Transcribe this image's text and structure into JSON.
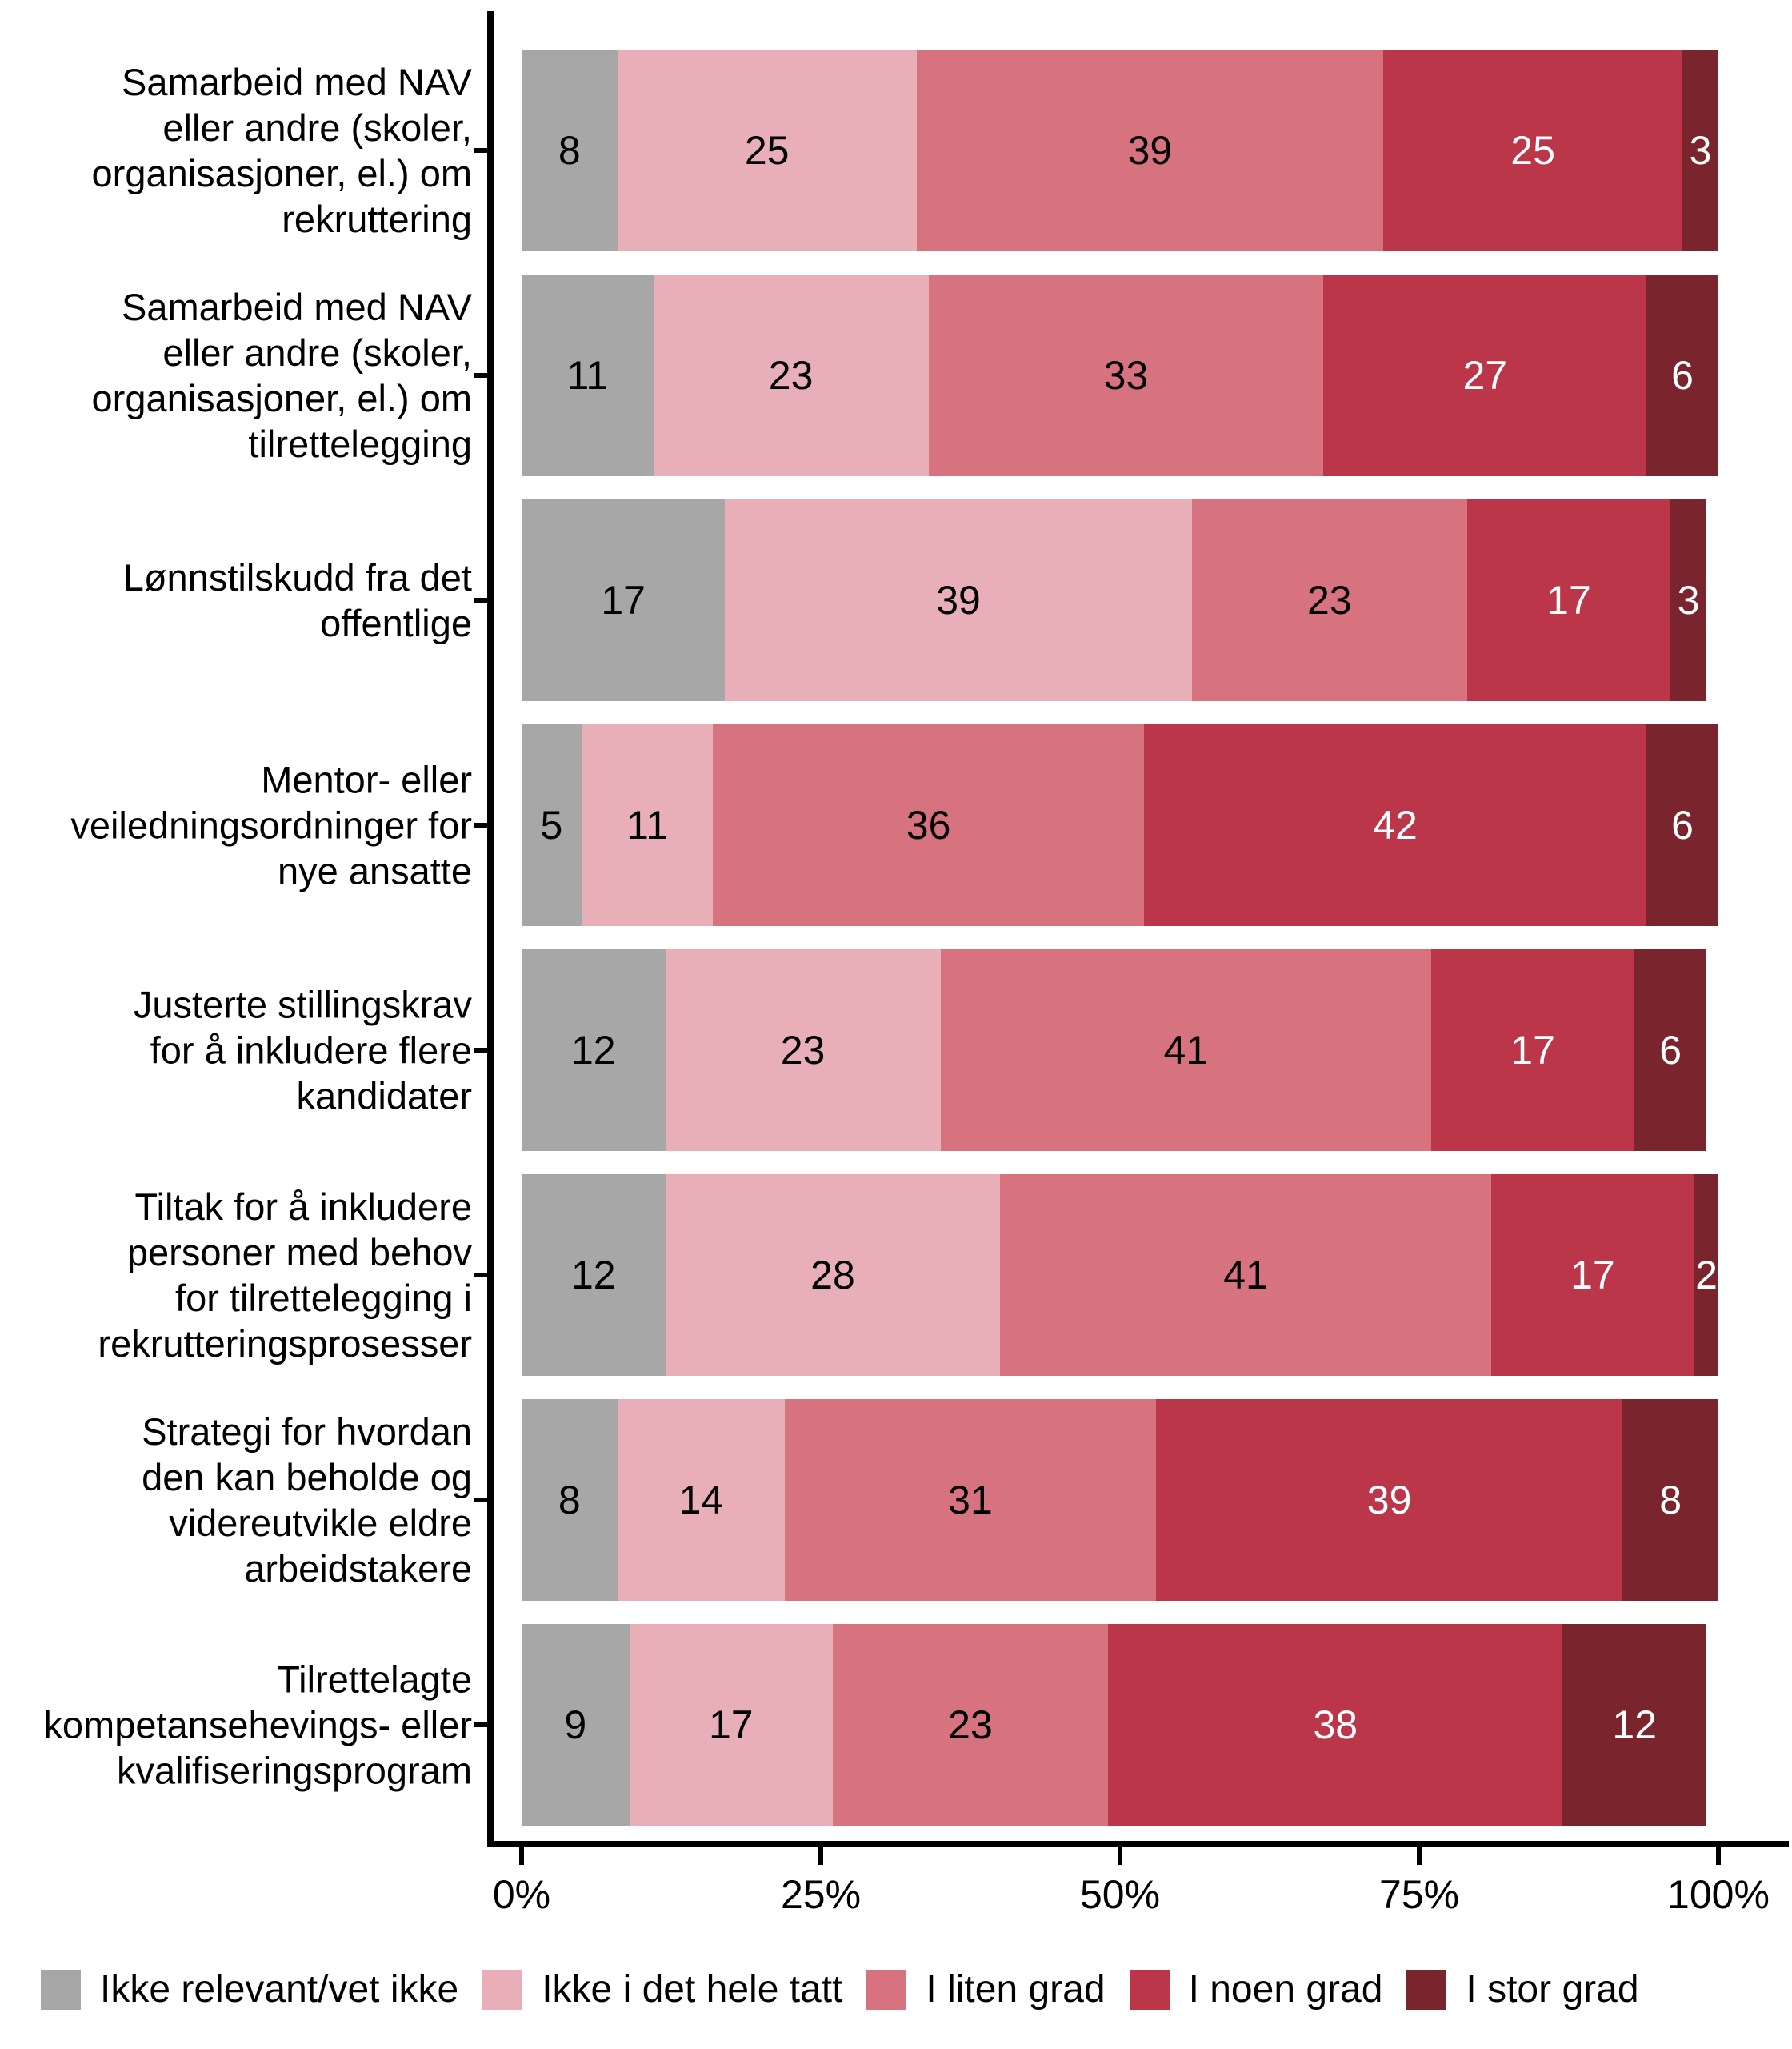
{
  "chart_data": {
    "type": "bar",
    "orientation": "horizontal",
    "stacked": true,
    "unit": "percent",
    "title": "",
    "xlabel": "",
    "ylabel": "",
    "grid": false,
    "legend_position": "bottom",
    "x_axis": {
      "min": 0,
      "max": 100,
      "tick_values": [
        0,
        25,
        50,
        75,
        100
      ],
      "tick_labels": [
        "0%",
        "25%",
        "50%",
        "75%",
        "100%"
      ]
    },
    "categories": [
      "Samarbeid med NAV\neller andre (skoler,\norganisasjoner, el.) om\nrekruttering",
      "Samarbeid med NAV\neller andre (skoler,\norganisasjoner, el.) om\ntilrettelegging",
      "Lønnstilskudd fra det\noffentlige",
      "Mentor- eller\nveiledningsordninger for\nnye ansatte",
      "Justerte stillingskrav\nfor å inkludere flere\nkandidater",
      "Tiltak for å inkludere\npersoner med behov\nfor tilrettelegging i\nrekrutteringsprosesser",
      "Strategi for hvordan\nden kan beholde og\nvidereutvikle eldre\narbeidstakere",
      "Tilrettelagte\nkompetansehevings- eller\nkvalifiseringsprogram"
    ],
    "series": [
      {
        "name": "Ikke relevant/vet ikke",
        "color": "#A7A7A7",
        "label_color": "#000000",
        "values": [
          8,
          11,
          17,
          5,
          12,
          12,
          8,
          9
        ]
      },
      {
        "name": "Ikke i det hele tatt",
        "color": "#E8AFB8",
        "label_color": "#000000",
        "values": [
          25,
          23,
          39,
          11,
          23,
          28,
          14,
          17
        ]
      },
      {
        "name": "I liten grad",
        "color": "#D6737F",
        "label_color": "#000000",
        "values": [
          39,
          33,
          23,
          36,
          41,
          41,
          31,
          23
        ]
      },
      {
        "name": "I noen grad",
        "color": "#BB3649",
        "label_color": "#FFFFFF",
        "values": [
          25,
          27,
          17,
          42,
          17,
          17,
          39,
          38
        ]
      },
      {
        "name": "I stor grad",
        "color": "#7A252E",
        "label_color": "#FFFFFF",
        "values": [
          3,
          6,
          3,
          6,
          6,
          2,
          8,
          12
        ]
      }
    ],
    "legend": [
      "Ikke relevant/vet ikke",
      "Ikke i det hele tatt",
      "I liten grad",
      "I noen grad",
      "I stor grad"
    ]
  }
}
